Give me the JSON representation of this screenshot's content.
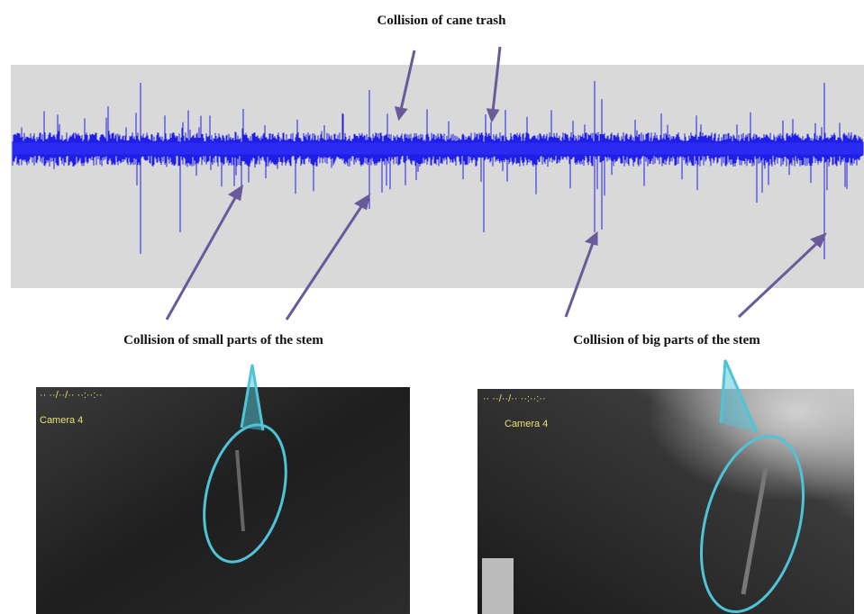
{
  "annotations": {
    "top": "Collision of cane trash",
    "left": "Collision of small parts of the stem",
    "right": "Collision of big parts of the stem"
  },
  "images": [
    {
      "overlay": "Camera 4"
    },
    {
      "overlay": "Camera 4"
    }
  ]
}
